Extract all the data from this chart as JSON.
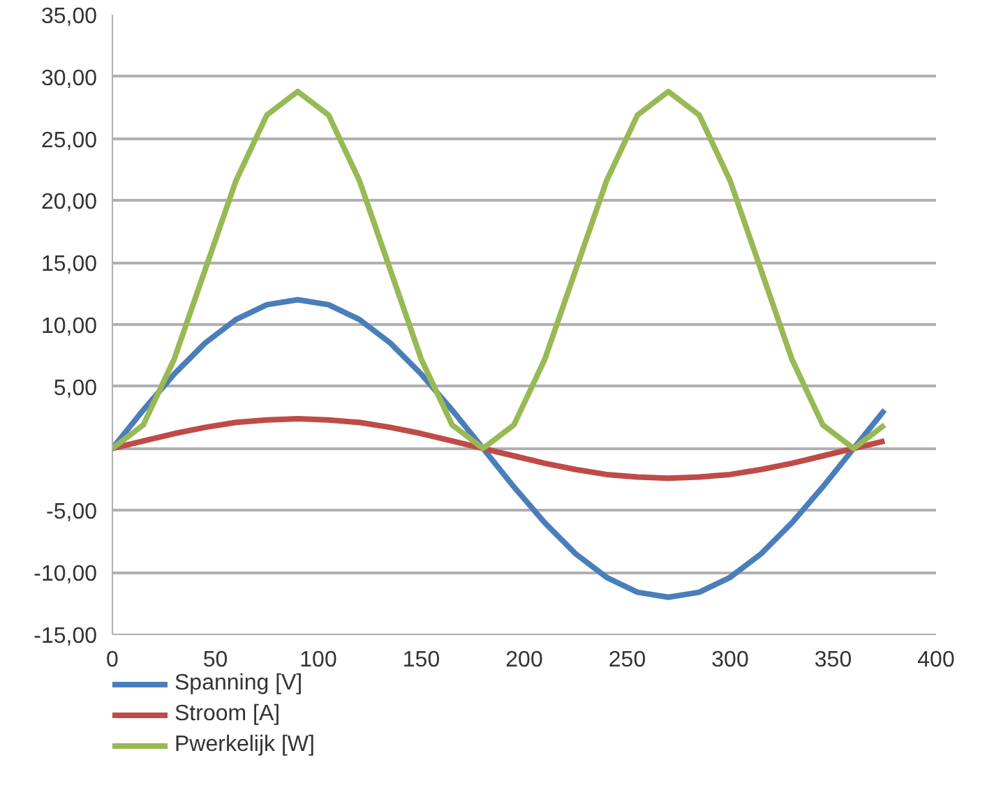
{
  "chart_data": {
    "type": "line",
    "x": [
      0,
      15,
      30,
      45,
      60,
      75,
      90,
      105,
      120,
      135,
      150,
      165,
      180,
      195,
      210,
      225,
      240,
      255,
      270,
      285,
      300,
      315,
      330,
      345,
      360,
      375
    ],
    "series": [
      {
        "name": "Spanning [V]",
        "color": "#4a7ebb",
        "values": [
          0,
          3.1,
          6,
          8.5,
          10.4,
          11.6,
          12,
          11.6,
          10.4,
          8.5,
          6,
          3.1,
          0,
          -3.1,
          -6,
          -8.5,
          -10.4,
          -11.6,
          -12,
          -11.6,
          -10.4,
          -8.5,
          -6,
          -3.1,
          0,
          3.1
        ]
      },
      {
        "name": "Stroom [A]",
        "color": "#be4b48",
        "values": [
          0,
          0.6,
          1.2,
          1.7,
          2.1,
          2.3,
          2.4,
          2.3,
          2.1,
          1.7,
          1.2,
          0.6,
          0,
          -0.6,
          -1.2,
          -1.7,
          -2.1,
          -2.3,
          -2.4,
          -2.3,
          -2.1,
          -1.7,
          -1.2,
          -0.6,
          0,
          0.6
        ]
      },
      {
        "name": "Pwerkelijk [W]",
        "color": "#98b954",
        "values": [
          0,
          1.9,
          7.2,
          14.4,
          21.6,
          26.9,
          28.8,
          26.9,
          21.6,
          14.4,
          7.2,
          1.9,
          0,
          1.9,
          7.2,
          14.4,
          21.6,
          26.9,
          28.8,
          26.9,
          21.6,
          14.4,
          7.2,
          1.9,
          0,
          1.9
        ]
      }
    ],
    "xlim": [
      0,
      400
    ],
    "xticks": [
      0,
      50,
      100,
      150,
      200,
      250,
      300,
      350,
      400
    ],
    "ylim": [
      -15,
      35
    ],
    "yticks": [
      {
        "value": -15,
        "label": "-15,00"
      },
      {
        "value": -10,
        "label": "-10,00"
      },
      {
        "value": -5,
        "label": "-5,00"
      },
      {
        "value": 0,
        "label": null
      },
      {
        "value": 5,
        "label": "5,00"
      },
      {
        "value": 10,
        "label": "10,00"
      },
      {
        "value": 15,
        "label": "15,00"
      },
      {
        "value": 20,
        "label": "20,00"
      },
      {
        "value": 25,
        "label": "25,00"
      },
      {
        "value": 30,
        "label": "30,00"
      },
      {
        "value": 35,
        "label": "35,00"
      }
    ],
    "grid": "y",
    "legend": "bottom",
    "marker": "none",
    "line_style": "solid"
  }
}
